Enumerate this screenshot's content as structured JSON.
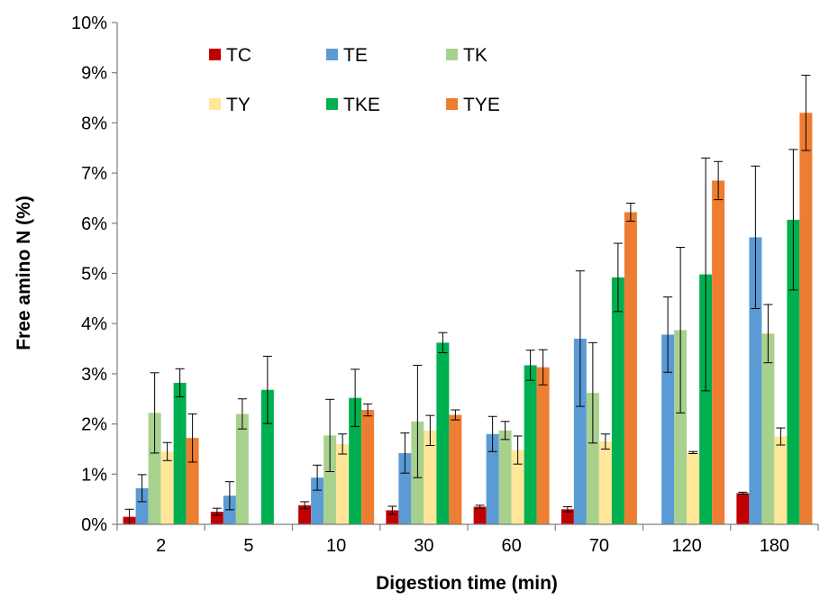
{
  "chart_data": {
    "type": "bar",
    "title": "",
    "xlabel": "Digestion time (min)",
    "ylabel": "Free amino N (%)",
    "categories": [
      "2",
      "5",
      "10",
      "30",
      "60",
      "70",
      "120",
      "180"
    ],
    "ylim": [
      0,
      10
    ],
    "y_ticks": [
      "0%",
      "1%",
      "2%",
      "3%",
      "4%",
      "5%",
      "6%",
      "7%",
      "8%",
      "9%",
      "10%"
    ],
    "grid": false,
    "legend": "top-left, inside plot, 3 columns",
    "series": [
      {
        "name": "TC",
        "color": "#C00000",
        "values": [
          0.15,
          0.25,
          0.38,
          0.28,
          0.35,
          0.3,
          null,
          0.62
        ],
        "errors": [
          0.15,
          0.07,
          0.07,
          0.08,
          0.03,
          0.05,
          null,
          0.02
        ]
      },
      {
        "name": "TE",
        "color": "#5B9BD5",
        "values": [
          0.72,
          0.57,
          0.93,
          1.42,
          1.8,
          3.7,
          3.78,
          5.72
        ],
        "errors": [
          0.27,
          0.28,
          0.25,
          0.4,
          0.35,
          1.35,
          0.75,
          1.42
        ]
      },
      {
        "name": "TK",
        "color": "#A9D18E",
        "values": [
          2.22,
          2.2,
          1.77,
          2.05,
          1.87,
          2.62,
          3.87,
          3.8
        ],
        "errors": [
          0.8,
          0.3,
          0.72,
          1.12,
          0.18,
          1.0,
          1.65,
          0.58
        ]
      },
      {
        "name": "TY",
        "color": "#FFE699",
        "values": [
          1.45,
          null,
          1.6,
          1.87,
          1.48,
          1.65,
          1.43,
          1.75
        ],
        "errors": [
          0.18,
          null,
          0.2,
          0.3,
          0.28,
          0.15,
          0.02,
          0.17
        ]
      },
      {
        "name": "TKE",
        "color": "#00B050",
        "values": [
          2.82,
          2.68,
          2.52,
          3.62,
          3.17,
          4.92,
          4.98,
          6.07
        ],
        "errors": [
          0.28,
          0.67,
          0.57,
          0.2,
          0.3,
          0.68,
          2.32,
          1.4
        ]
      },
      {
        "name": "TYE",
        "color": "#ED7D31",
        "values": [
          1.72,
          null,
          2.28,
          2.18,
          3.13,
          6.22,
          6.85,
          8.2
        ],
        "errors": [
          0.48,
          null,
          0.12,
          0.1,
          0.35,
          0.18,
          0.38,
          0.75
        ]
      }
    ]
  }
}
